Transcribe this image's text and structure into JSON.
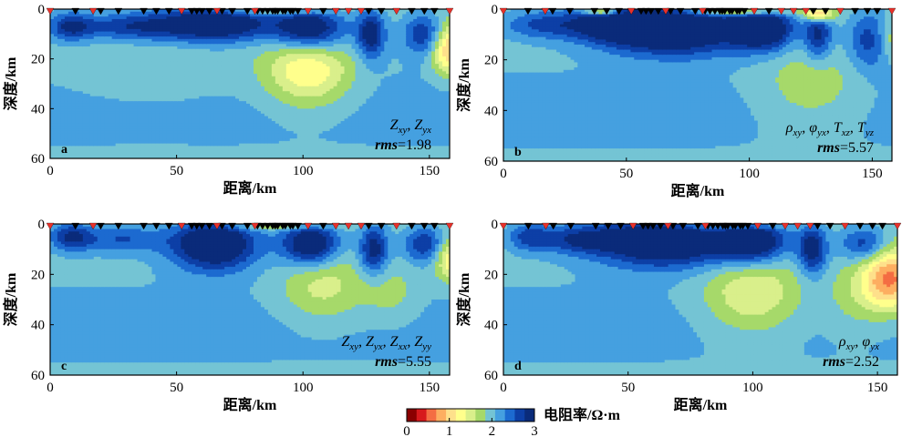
{
  "colorbar": {
    "title": "电阻率/Ω·m",
    "ticks": [
      "0",
      "1",
      "2",
      "3"
    ],
    "range": [
      0,
      3
    ],
    "colors": [
      "#8b0000",
      "#d7191c",
      "#f46d43",
      "#fdae61",
      "#fee08b",
      "#ffff8c",
      "#d9ef8b",
      "#a6d96a",
      "#74c4d4",
      "#45a0e0",
      "#1c6ad0",
      "#0d3fa6",
      "#0a2b7a"
    ]
  },
  "chart_data": [
    {
      "type": "heatmap",
      "panel": "a",
      "xlabel": "距离/km",
      "ylabel": "深度/km",
      "xlim": [
        0,
        158
      ],
      "ylim": [
        0,
        60
      ],
      "xticks": [
        0,
        50,
        100,
        150
      ],
      "yticks": [
        0,
        20,
        40,
        60
      ],
      "annotation_line1": "Z xy , Z yx",
      "annotation_line2": "rms=1.98",
      "rms": 1.98,
      "stations_black": [
        10,
        20,
        27,
        37,
        42,
        47,
        56,
        58,
        60,
        63,
        68,
        72,
        78,
        82,
        84,
        86,
        88,
        89,
        90,
        92,
        93,
        95,
        96,
        98,
        108,
        126,
        131,
        143,
        148,
        152
      ],
      "stations_red": [
        0,
        17,
        52,
        66,
        81,
        102,
        113,
        118,
        123,
        137,
        158
      ],
      "anomalies": [
        {
          "x": 65,
          "z": 6,
          "sx": 17,
          "sz": 5,
          "v": -1.3
        },
        {
          "x": 30,
          "z": 7,
          "sx": 14,
          "sz": 4,
          "v": -0.7
        },
        {
          "x": 103,
          "z": 8,
          "sx": 10,
          "sz": 6,
          "v": -1.2
        },
        {
          "x": 127,
          "z": 10,
          "sx": 4,
          "sz": 7,
          "v": -1.0
        },
        {
          "x": 8,
          "z": 7,
          "sx": 6,
          "sz": 4,
          "v": -0.8
        },
        {
          "x": 148,
          "z": 10,
          "sx": 6,
          "sz": 6,
          "v": -0.8
        },
        {
          "x": 102,
          "z": 25,
          "sx": 12,
          "sz": 10,
          "v": 0.9
        },
        {
          "x": 158,
          "z": 16,
          "sx": 5,
          "sz": 7,
          "v": 1.2
        },
        {
          "x": 40,
          "z": 25,
          "sx": 25,
          "sz": 10,
          "v": 0.15
        },
        {
          "x": 90,
          "z": 1,
          "sx": 15,
          "sz": 1,
          "v": 0.5
        }
      ]
    },
    {
      "type": "heatmap",
      "panel": "b",
      "xlabel": "距离/km",
      "ylabel": "深度/km",
      "xlim": [
        0,
        158
      ],
      "ylim": [
        0,
        60
      ],
      "xticks": [
        0,
        50,
        100,
        150
      ],
      "yticks": [
        0,
        20,
        40,
        60
      ],
      "annotation_line1": "ρ xy , φ yx , T xz , T yz",
      "annotation_line2": "rms=5.57",
      "rms": 5.57,
      "stations_black": [
        10,
        20,
        27,
        37,
        42,
        47,
        56,
        58,
        60,
        63,
        68,
        72,
        78,
        82,
        84,
        86,
        88,
        89,
        90,
        92,
        93,
        95,
        96,
        98,
        108,
        126,
        131,
        143,
        148,
        152
      ],
      "stations_red": [
        0,
        17,
        52,
        66,
        81,
        102,
        113,
        118,
        123,
        137,
        158
      ],
      "anomalies": [
        {
          "x": 70,
          "z": 8,
          "sx": 20,
          "sz": 7,
          "v": -1.4
        },
        {
          "x": 45,
          "z": 6,
          "sx": 14,
          "sz": 5,
          "v": -0.9
        },
        {
          "x": 15,
          "z": 6,
          "sx": 12,
          "sz": 4,
          "v": -0.6
        },
        {
          "x": 106,
          "z": 8,
          "sx": 9,
          "sz": 6,
          "v": -1.2
        },
        {
          "x": 128,
          "z": 10,
          "sx": 4,
          "sz": 7,
          "v": -0.9
        },
        {
          "x": 150,
          "z": 12,
          "sx": 7,
          "sz": 8,
          "v": -0.8
        },
        {
          "x": 128,
          "z": 2,
          "sx": 4,
          "sz": 2,
          "v": 1.3
        },
        {
          "x": 95,
          "z": 1,
          "sx": 15,
          "sz": 1,
          "v": 1.0
        },
        {
          "x": 40,
          "z": 1,
          "sx": 5,
          "sz": 1,
          "v": 1.1
        },
        {
          "x": 125,
          "z": 30,
          "sx": 15,
          "sz": 12,
          "v": 0.4
        },
        {
          "x": 158,
          "z": 12,
          "sx": 5,
          "sz": 6,
          "v": 0.6
        }
      ]
    },
    {
      "type": "heatmap",
      "panel": "c",
      "xlabel": "距离/km",
      "ylabel": "深度/km",
      "xlim": [
        0,
        158
      ],
      "ylim": [
        0,
        60
      ],
      "xticks": [
        0,
        50,
        100,
        150
      ],
      "yticks": [
        0,
        20,
        40,
        60
      ],
      "annotation_line1": "Z xy , Z yx , Z xx , Z yy",
      "annotation_line2": "rms=5.55",
      "rms": 5.55,
      "stations_black": [
        10,
        20,
        27,
        37,
        42,
        47,
        56,
        58,
        60,
        63,
        68,
        72,
        78,
        82,
        84,
        86,
        88,
        89,
        90,
        92,
        93,
        95,
        96,
        98,
        108,
        126,
        131,
        143,
        148,
        152
      ],
      "stations_red": [
        0,
        17,
        52,
        66,
        81,
        102,
        113,
        118,
        123,
        137,
        158
      ],
      "anomalies": [
        {
          "x": 65,
          "z": 8,
          "sx": 12,
          "sz": 7,
          "v": -1.4
        },
        {
          "x": 28,
          "z": 6,
          "sx": 12,
          "sz": 4,
          "v": -0.6
        },
        {
          "x": 103,
          "z": 8,
          "sx": 8,
          "sz": 6,
          "v": -1.3
        },
        {
          "x": 128,
          "z": 10,
          "sx": 4,
          "sz": 7,
          "v": -1.0
        },
        {
          "x": 8,
          "z": 5,
          "sx": 6,
          "sz": 4,
          "v": -0.8
        },
        {
          "x": 148,
          "z": 8,
          "sx": 6,
          "sz": 5,
          "v": -0.8
        },
        {
          "x": 108,
          "z": 25,
          "sx": 12,
          "sz": 10,
          "v": 0.55
        },
        {
          "x": 158,
          "z": 14,
          "sx": 4,
          "sz": 6,
          "v": 0.8
        },
        {
          "x": 135,
          "z": 28,
          "sx": 8,
          "sz": 8,
          "v": 0.3
        },
        {
          "x": 90,
          "z": 1,
          "sx": 15,
          "sz": 1,
          "v": 0.5
        }
      ]
    },
    {
      "type": "heatmap",
      "panel": "d",
      "xlabel": "距离/km",
      "ylabel": "深度/km",
      "xlim": [
        0,
        158
      ],
      "ylim": [
        0,
        60
      ],
      "xticks": [
        0,
        50,
        100,
        150
      ],
      "yticks": [
        0,
        20,
        40,
        60
      ],
      "annotation_line1": "ρ xy , φ yx",
      "annotation_line2": "rms=2.52",
      "rms": 2.52,
      "stations_black": [
        10,
        20,
        27,
        37,
        42,
        47,
        56,
        58,
        60,
        63,
        68,
        72,
        78,
        82,
        84,
        86,
        88,
        89,
        90,
        92,
        93,
        95,
        96,
        98,
        108,
        126,
        131,
        143,
        148,
        152
      ],
      "stations_red": [
        0,
        17,
        52,
        66,
        81,
        102,
        113,
        118,
        123,
        137,
        158
      ],
      "anomalies": [
        {
          "x": 65,
          "z": 7,
          "sx": 20,
          "sz": 7,
          "v": -1.4
        },
        {
          "x": 30,
          "z": 6,
          "sx": 12,
          "sz": 4,
          "v": -0.7
        },
        {
          "x": 100,
          "z": 7,
          "sx": 10,
          "sz": 6,
          "v": -1.2
        },
        {
          "x": 124,
          "z": 10,
          "sx": 4,
          "sz": 7,
          "v": -1.0
        },
        {
          "x": 145,
          "z": 8,
          "sx": 7,
          "sz": 5,
          "v": -0.8
        },
        {
          "x": 10,
          "z": 5,
          "sx": 6,
          "sz": 4,
          "v": -0.6
        },
        {
          "x": 100,
          "z": 28,
          "sx": 14,
          "sz": 11,
          "v": 0.7
        },
        {
          "x": 155,
          "z": 22,
          "sx": 8,
          "sz": 9,
          "v": 1.4
        },
        {
          "x": 140,
          "z": 30,
          "sx": 8,
          "sz": 10,
          "v": 0.3
        },
        {
          "x": 90,
          "z": 1,
          "sx": 15,
          "sz": 1,
          "v": 0.5
        }
      ]
    }
  ]
}
